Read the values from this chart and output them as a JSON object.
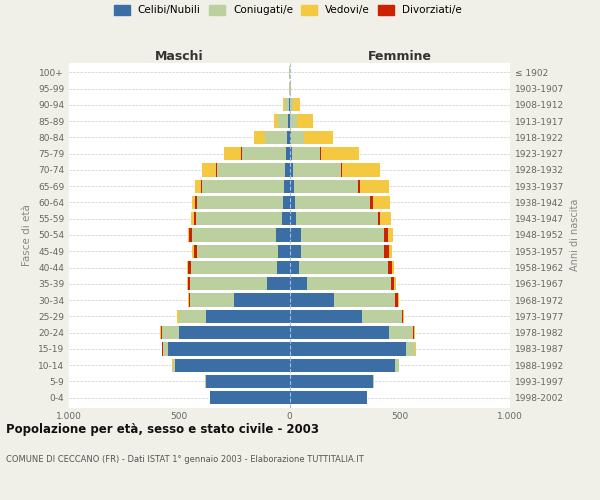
{
  "age_groups": [
    "0-4",
    "5-9",
    "10-14",
    "15-19",
    "20-24",
    "25-29",
    "30-34",
    "35-39",
    "40-44",
    "45-49",
    "50-54",
    "55-59",
    "60-64",
    "65-69",
    "70-74",
    "75-79",
    "80-84",
    "85-89",
    "90-94",
    "95-99",
    "100+"
  ],
  "birth_years": [
    "1998-2002",
    "1993-1997",
    "1988-1992",
    "1983-1987",
    "1978-1982",
    "1973-1977",
    "1968-1972",
    "1963-1967",
    "1958-1962",
    "1953-1957",
    "1948-1952",
    "1943-1947",
    "1938-1942",
    "1933-1937",
    "1928-1932",
    "1923-1927",
    "1918-1922",
    "1913-1917",
    "1908-1912",
    "1903-1907",
    "≤ 1902"
  ],
  "maschi": {
    "celibi": [
      360,
      380,
      520,
      550,
      500,
      380,
      250,
      100,
      55,
      50,
      60,
      35,
      30,
      25,
      20,
      15,
      10,
      5,
      2,
      0,
      0
    ],
    "coniugati": [
      2,
      2,
      10,
      25,
      80,
      120,
      200,
      350,
      390,
      370,
      380,
      390,
      390,
      370,
      310,
      200,
      100,
      45,
      20,
      3,
      1
    ],
    "vedovi": [
      0,
      0,
      1,
      2,
      5,
      5,
      5,
      5,
      5,
      5,
      5,
      10,
      15,
      30,
      60,
      80,
      50,
      20,
      8,
      1,
      0
    ],
    "divorziati": [
      0,
      0,
      0,
      1,
      2,
      3,
      5,
      10,
      15,
      15,
      15,
      10,
      8,
      5,
      5,
      3,
      3,
      2,
      0,
      0,
      0
    ]
  },
  "femmine": {
    "nubili": [
      350,
      380,
      480,
      530,
      450,
      330,
      200,
      80,
      45,
      50,
      50,
      30,
      25,
      20,
      15,
      10,
      5,
      3,
      2,
      0,
      0
    ],
    "coniugate": [
      3,
      3,
      15,
      40,
      110,
      180,
      280,
      380,
      400,
      380,
      380,
      370,
      340,
      290,
      220,
      130,
      60,
      30,
      15,
      3,
      1
    ],
    "vedove": [
      0,
      0,
      1,
      2,
      5,
      5,
      5,
      8,
      10,
      15,
      25,
      50,
      80,
      130,
      170,
      170,
      130,
      70,
      30,
      5,
      0
    ],
    "divorziate": [
      0,
      0,
      0,
      1,
      3,
      5,
      10,
      15,
      20,
      20,
      15,
      12,
      12,
      10,
      5,
      3,
      3,
      2,
      0,
      0,
      0
    ]
  },
  "colors": {
    "celibi_nubili": "#3a6ea5",
    "coniugati": "#bccf9e",
    "vedovi": "#f5c842",
    "divorziati": "#cc2200"
  },
  "xlim": 1000,
  "title": "Popolazione per età, sesso e stato civile - 2003",
  "subtitle": "COMUNE DI CECCANO (FR) - Dati ISTAT 1° gennaio 2003 - Elaborazione TUTTITALIA.IT",
  "xlabel_left": "Maschi",
  "xlabel_right": "Femmine",
  "ylabel_left": "Fasce di età",
  "ylabel_right": "Anni di nascita",
  "bg_color": "#f0f0e8",
  "plot_bg": "#ffffff"
}
